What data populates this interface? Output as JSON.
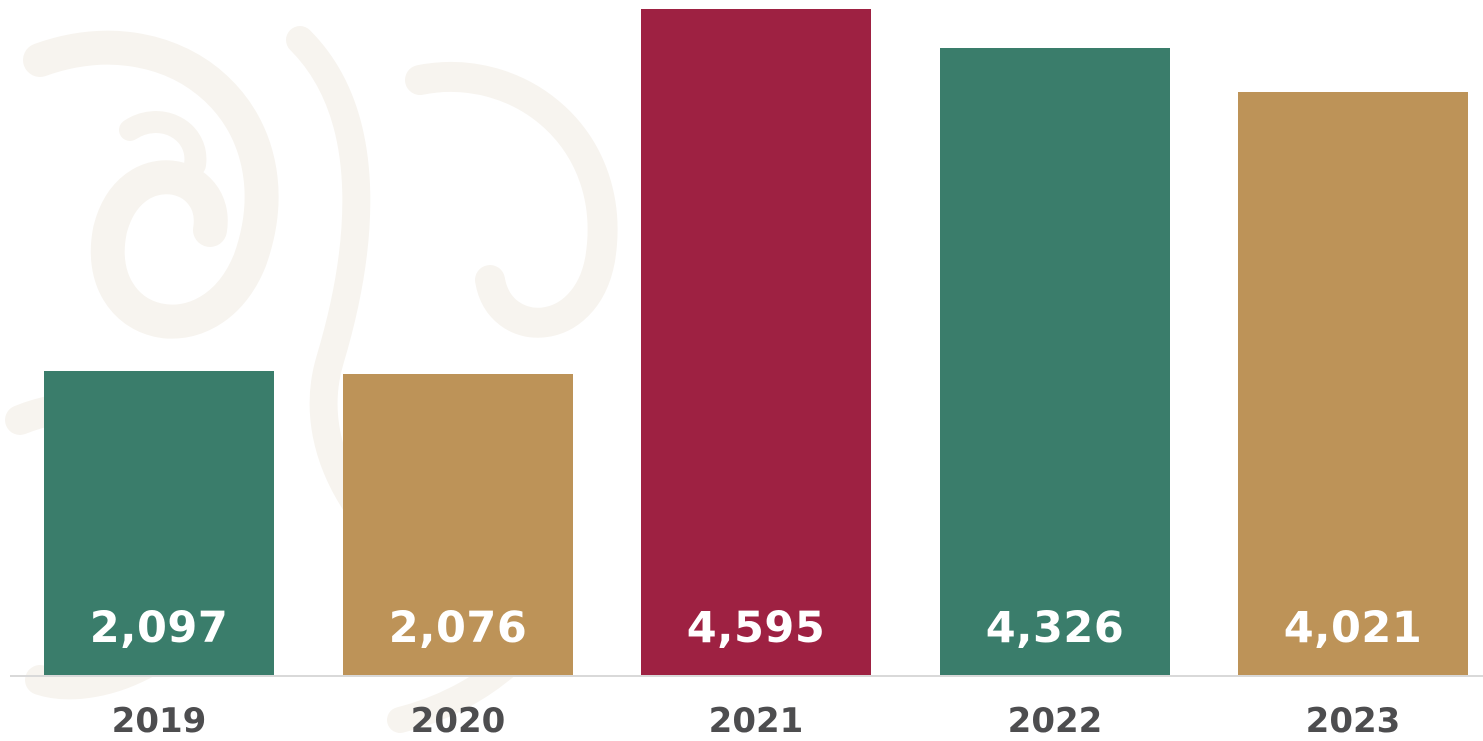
{
  "chart_data": {
    "type": "bar",
    "categories": [
      "2019",
      "2020",
      "2021",
      "2022",
      "2023"
    ],
    "values": [
      2097,
      2076,
      4595,
      4326,
      4021
    ],
    "value_labels": [
      "2,097",
      "2,076",
      "4,595",
      "4,326",
      "4,021"
    ],
    "bar_colors": [
      "#3a7d6b",
      "#bd9358",
      "#9e2142",
      "#3a7d6b",
      "#bd9358"
    ],
    "title": "",
    "xlabel": "",
    "ylabel": "",
    "ylim": [
      0,
      4595
    ],
    "grid": false,
    "legend": "none"
  },
  "style": {
    "label_color": "#ffffff",
    "axis_text_color": "#4d4d4f",
    "baseline_color": "#d9d9d9",
    "pattern_color": "#f7f4ef"
  }
}
